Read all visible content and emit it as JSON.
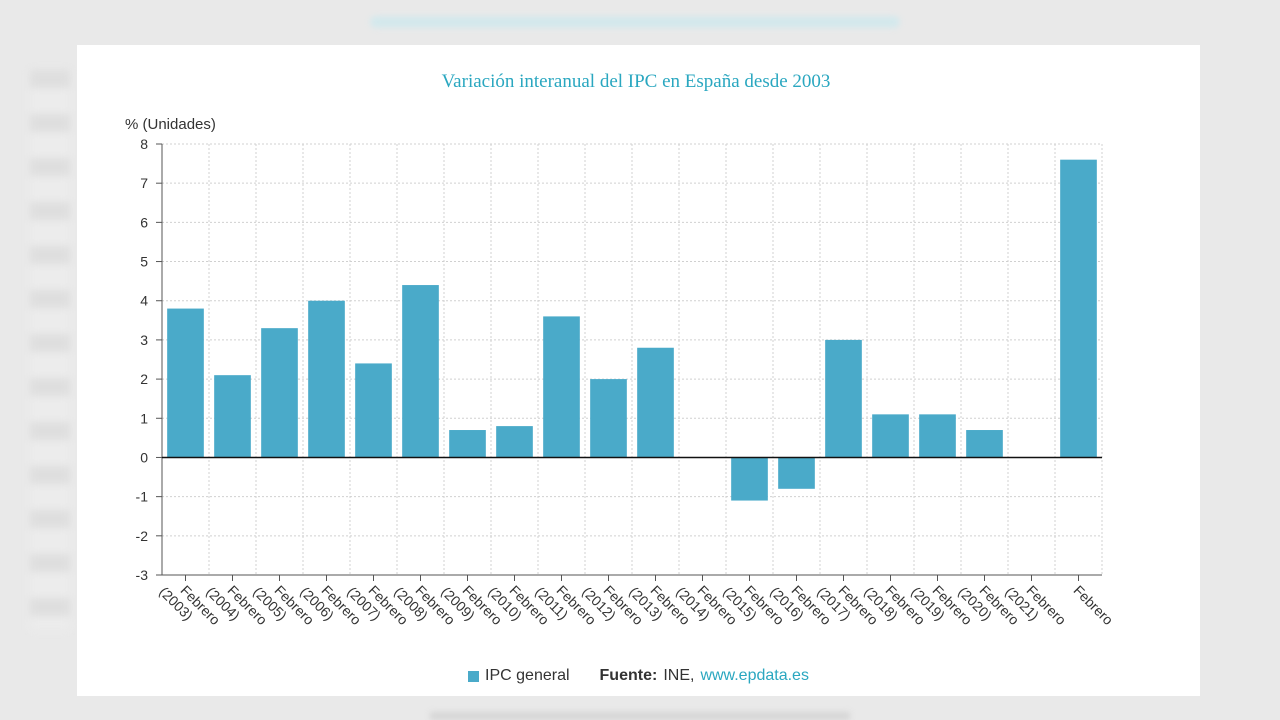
{
  "chart_data": {
    "type": "bar",
    "title": "Variación interanual del IPC en España desde 2003",
    "ylabel": "% (Unidades)",
    "ylim": [
      -3,
      8
    ],
    "yticks": [
      8,
      7,
      6,
      5,
      4,
      3,
      2,
      1,
      0,
      -1,
      -2,
      -3
    ],
    "grid": true,
    "categories": [
      [
        "Febrero",
        "(2003)"
      ],
      [
        "Febrero",
        "(2004)"
      ],
      [
        "Febrero",
        "(2005)"
      ],
      [
        "Febrero",
        "(2006)"
      ],
      [
        "Febrero",
        "(2007)"
      ],
      [
        "Febrero",
        "(2008)"
      ],
      [
        "Febrero",
        "(2009)"
      ],
      [
        "Febrero",
        "(2010)"
      ],
      [
        "Febrero",
        "(2011)"
      ],
      [
        "Febrero",
        "(2012)"
      ],
      [
        "Febrero",
        "(2013)"
      ],
      [
        "Febrero",
        "(2014)"
      ],
      [
        "Febrero",
        "(2015)"
      ],
      [
        "Febrero",
        "(2016)"
      ],
      [
        "Febrero",
        "(2017)"
      ],
      [
        "Febrero",
        "(2018)"
      ],
      [
        "Febrero",
        "(2019)"
      ],
      [
        "Febrero",
        "(2020)"
      ],
      [
        "Febrero",
        "(2021)"
      ],
      [
        "Febrero"
      ]
    ],
    "series": [
      {
        "name": "IPC general",
        "values": [
          3.8,
          2.1,
          3.3,
          4.0,
          2.4,
          4.4,
          0.7,
          0.8,
          3.6,
          2.0,
          2.8,
          0.0,
          -1.1,
          -0.8,
          3.0,
          1.1,
          1.1,
          0.7,
          0.0,
          7.6
        ]
      }
    ],
    "legend": "bottom-center",
    "colors": {
      "bar": "#4aaac9",
      "title": "#2aa7c0",
      "grid": "#d0d0d0",
      "zero_line": "#111111"
    }
  },
  "source": {
    "label": "Fuente:",
    "text": "INE,",
    "link": "www.epdata.es"
  }
}
